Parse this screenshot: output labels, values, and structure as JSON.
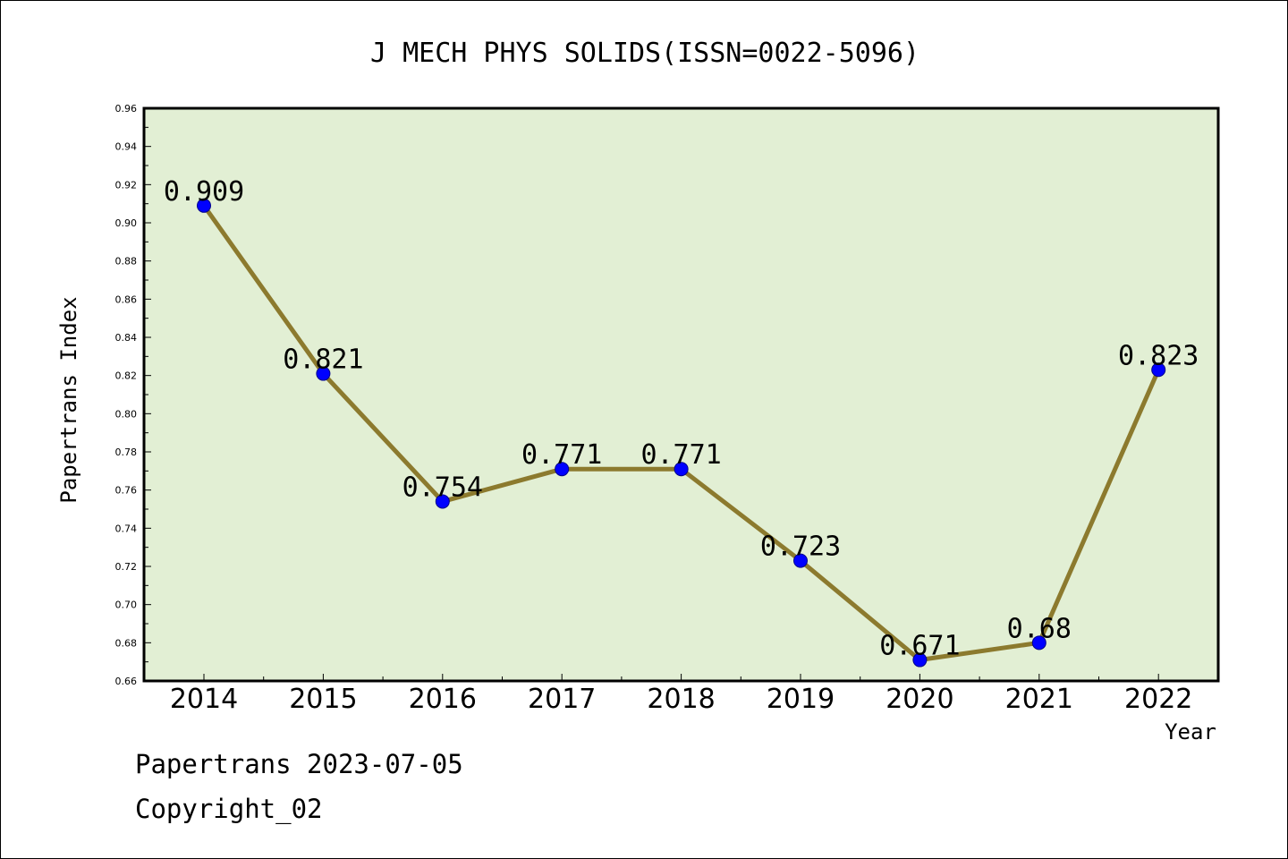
{
  "chart_data": {
    "type": "line",
    "title": "J MECH PHYS SOLIDS(ISSN=0022-5096)",
    "xlabel": "Year",
    "ylabel": "Papertrans Index",
    "categories": [
      "2014",
      "2015",
      "2016",
      "2017",
      "2018",
      "2019",
      "2020",
      "2021",
      "2022"
    ],
    "series": [
      {
        "values": [
          0.909,
          0.821,
          0.754,
          0.771,
          0.771,
          0.723,
          0.671,
          0.68,
          0.823
        ]
      }
    ],
    "data_labels": [
      "0.909",
      "0.821",
      "0.754",
      "0.771",
      "0.771",
      "0.723",
      "0.671",
      "0.68",
      "0.823"
    ],
    "ylim": [
      0.66,
      0.96
    ],
    "yticks": [
      "0.66",
      "0.68",
      "0.70",
      "0.72",
      "0.74",
      "0.76",
      "0.78",
      "0.80",
      "0.82",
      "0.84",
      "0.86",
      "0.88",
      "0.90",
      "0.92",
      "0.94",
      "0.96"
    ],
    "grid": false,
    "colors": {
      "plot_background": "#e2efd4",
      "line": "#8c7a2e",
      "marker": "#0000ff"
    }
  },
  "footer": {
    "line1": "Papertrans 2023-07-05",
    "line2": "Copyright_02"
  }
}
